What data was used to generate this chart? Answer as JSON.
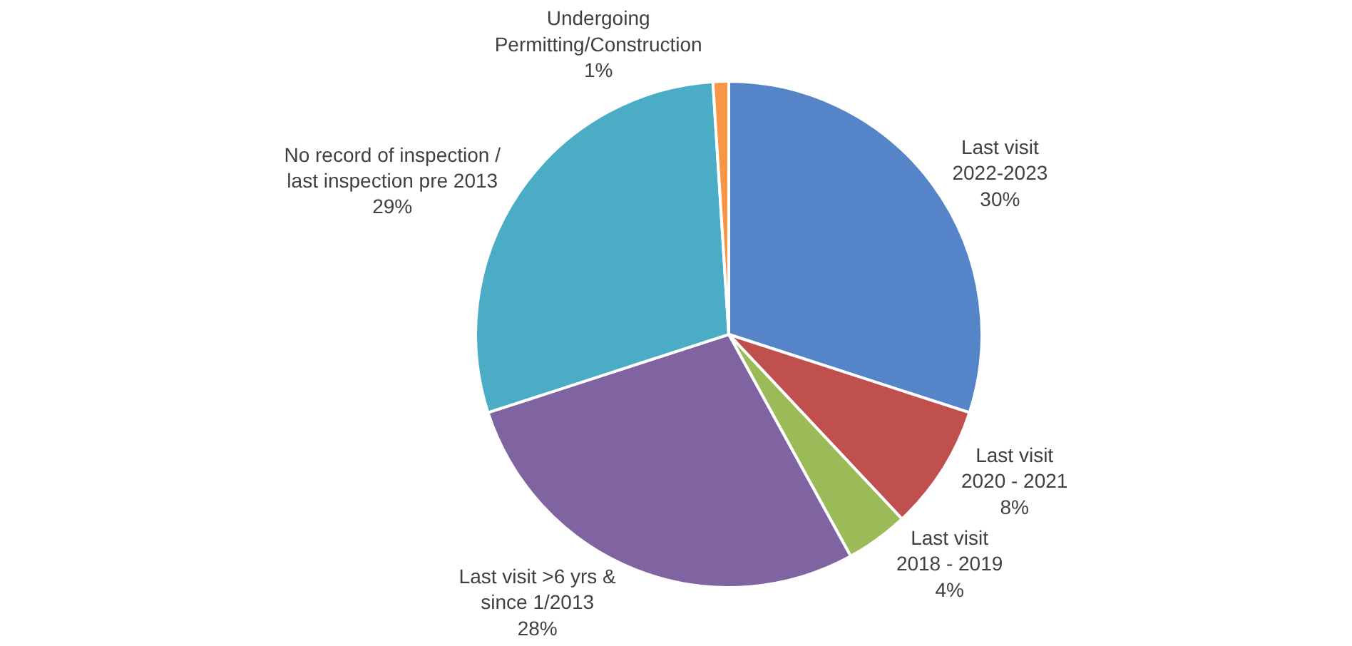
{
  "chart_data": {
    "type": "pie",
    "categories": [
      "Last visit\n2022-2023",
      "Last visit\n2020 - 2021",
      "Last visit\n2018 - 2019",
      "Last visit >6 yrs &\nsince 1/2013",
      "No record of inspection /\nlast inspection pre 2013",
      "Undergoing\nPermitting/Construction"
    ],
    "values": [
      30,
      8,
      4,
      28,
      29,
      1
    ],
    "value_labels": [
      "30%",
      "8%",
      "4%",
      "28%",
      "29%",
      "1%"
    ],
    "colors": [
      "#5585c8",
      "#c0504d",
      "#9bbb59",
      "#8064a2",
      "#4bacc6",
      "#f79646"
    ],
    "legend": false
  }
}
